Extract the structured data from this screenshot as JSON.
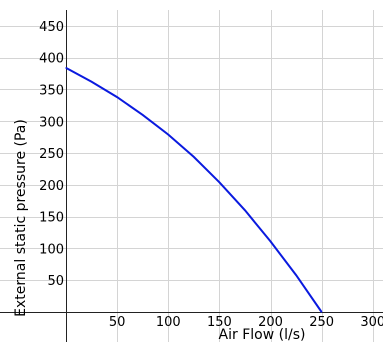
{
  "chart_data": {
    "type": "line",
    "title": "",
    "xlabel": "Air Flow (l/s)",
    "ylabel": "External static pressure (Pa)",
    "xlim": [
      0,
      310
    ],
    "ylim": [
      0,
      475
    ],
    "xticks": [
      50,
      100,
      150,
      200,
      250,
      300
    ],
    "yticks": [
      50,
      100,
      150,
      200,
      250,
      300,
      350,
      400,
      450
    ],
    "grid": true,
    "colors": {
      "line": "#0a1adf",
      "grid": "#d4d4d4"
    },
    "series": [
      {
        "x": [
          0,
          25,
          50,
          75,
          100,
          125,
          150,
          175,
          200,
          225,
          250
        ],
        "values": [
          384,
          362,
          338,
          310,
          279,
          244,
          204,
          160,
          111,
          58,
          0
        ]
      }
    ]
  }
}
